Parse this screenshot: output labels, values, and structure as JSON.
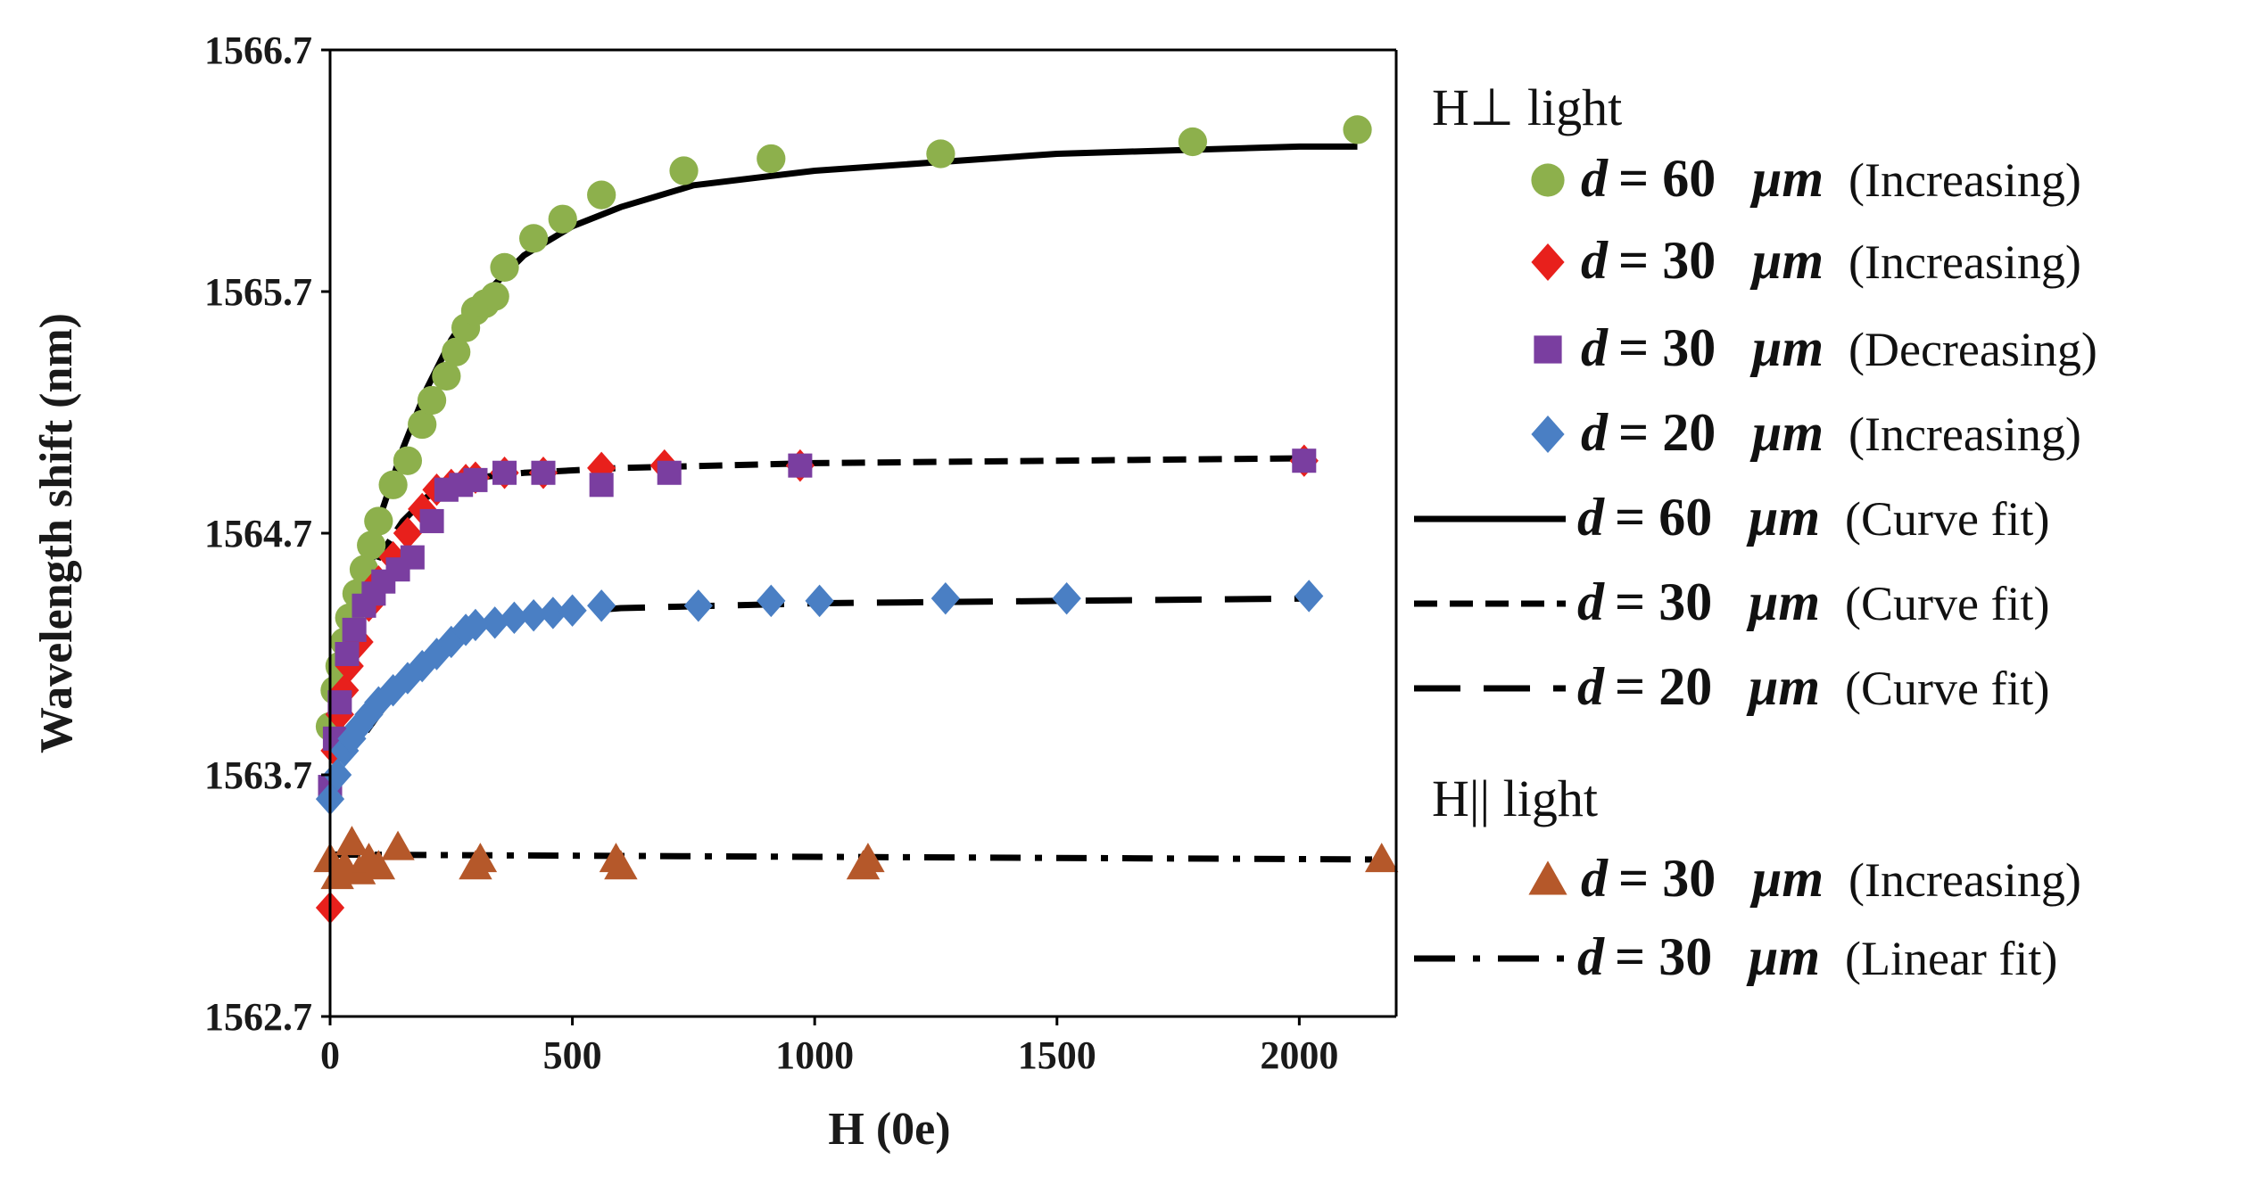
{
  "colors": {
    "green": "#8db04c",
    "red": "#e8201c",
    "purple": "#7a3ea0",
    "blue": "#4a7fc4",
    "brown": "#b5582a",
    "black": "#000000"
  },
  "chart_data": {
    "type": "scatter",
    "title": "",
    "xlabel": "H (0e)",
    "ylabel": "Wavelength shift (nm)",
    "xlim": [
      0,
      2200
    ],
    "ylim": [
      1562.7,
      1566.7
    ],
    "xticks": [
      0,
      500,
      1000,
      1500,
      2000
    ],
    "yticks": [
      1562.7,
      1563.7,
      1564.7,
      1565.7,
      1566.7
    ],
    "ytick_labels": [
      "1562.7",
      "1563.7",
      "1564.7",
      "1565.7",
      "1566.7"
    ],
    "series": [
      {
        "name": "d = 60 µm (Increasing)",
        "kind": "points",
        "marker": "circle",
        "color_key": "green",
        "x": [
          0,
          10,
          20,
          30,
          40,
          55,
          70,
          85,
          100,
          130,
          160,
          190,
          210,
          240,
          260,
          280,
          300,
          320,
          340,
          360,
          420,
          480,
          560,
          730,
          910,
          1260,
          1780,
          2120
        ],
        "y": [
          1563.9,
          1564.05,
          1564.15,
          1564.25,
          1564.35,
          1564.45,
          1564.55,
          1564.65,
          1564.75,
          1564.9,
          1565.0,
          1565.15,
          1565.25,
          1565.35,
          1565.45,
          1565.55,
          1565.62,
          1565.65,
          1565.68,
          1565.8,
          1565.92,
          1566.0,
          1566.1,
          1566.2,
          1566.25,
          1566.27,
          1566.32,
          1566.37
        ]
      },
      {
        "name": "d = 30 µm (Increasing)",
        "kind": "points",
        "marker": "diamond",
        "color_key": "red",
        "x": [
          0,
          10,
          20,
          30,
          40,
          60,
          80,
          100,
          130,
          160,
          190,
          220,
          250,
          280,
          300,
          360,
          440,
          560,
          690,
          970,
          2010
        ],
        "y": [
          1563.15,
          1563.8,
          1563.95,
          1564.05,
          1564.15,
          1564.25,
          1564.4,
          1564.5,
          1564.6,
          1564.7,
          1564.8,
          1564.88,
          1564.9,
          1564.92,
          1564.93,
          1564.95,
          1564.95,
          1564.97,
          1564.98,
          1564.98,
          1565.0
        ]
      },
      {
        "name": "d = 30 µm (Decreasing)",
        "kind": "points",
        "marker": "square",
        "color_key": "purple",
        "x": [
          2010,
          970,
          700,
          560,
          440,
          360,
          300,
          270,
          240,
          210,
          170,
          140,
          110,
          90,
          70,
          50,
          35,
          20,
          10,
          0
        ],
        "y": [
          1565.0,
          1564.98,
          1564.95,
          1564.9,
          1564.95,
          1564.95,
          1564.92,
          1564.9,
          1564.88,
          1564.75,
          1564.6,
          1564.55,
          1564.5,
          1564.45,
          1564.4,
          1564.3,
          1564.2,
          1564.0,
          1563.85,
          1563.65
        ]
      },
      {
        "name": "d = 20 µm (Increasing)",
        "kind": "points",
        "marker": "diamond",
        "color_key": "blue",
        "x": [
          0,
          15,
          30,
          45,
          60,
          80,
          100,
          130,
          160,
          190,
          220,
          250,
          280,
          300,
          340,
          380,
          420,
          460,
          500,
          560,
          760,
          910,
          1010,
          1270,
          1520,
          2020
        ],
        "y": [
          1563.6,
          1563.7,
          1563.8,
          1563.85,
          1563.9,
          1563.95,
          1564.0,
          1564.05,
          1564.1,
          1564.15,
          1564.2,
          1564.25,
          1564.3,
          1564.32,
          1564.33,
          1564.35,
          1564.36,
          1564.37,
          1564.38,
          1564.4,
          1564.4,
          1564.42,
          1564.42,
          1564.43,
          1564.43,
          1564.44
        ]
      },
      {
        "name": "d = 30 µm (Increasing) H||light",
        "kind": "points",
        "marker": "triangle",
        "color_key": "brown",
        "x": [
          0,
          15,
          30,
          45,
          60,
          80,
          100,
          140,
          300,
          310,
          590,
          600,
          1100,
          1110,
          2170
        ],
        "y": [
          1563.35,
          1563.28,
          1563.32,
          1563.42,
          1563.3,
          1563.35,
          1563.32,
          1563.4,
          1563.32,
          1563.35,
          1563.35,
          1563.32,
          1563.32,
          1563.35,
          1563.35
        ]
      },
      {
        "name": "d = 60 µm (Curve fit)",
        "kind": "line",
        "dash": "solid",
        "color_key": "black",
        "x": [
          75,
          100,
          150,
          200,
          250,
          300,
          350,
          400,
          500,
          600,
          750,
          1000,
          1500,
          2000,
          2120
        ],
        "y": [
          1564.45,
          1564.75,
          1565.05,
          1565.3,
          1565.5,
          1565.65,
          1565.75,
          1565.85,
          1565.97,
          1566.05,
          1566.14,
          1566.2,
          1566.27,
          1566.3,
          1566.3
        ]
      },
      {
        "name": "d = 30 µm (Curve fit)",
        "kind": "line",
        "dash": "short",
        "color_key": "black",
        "x": [
          75,
          100,
          150,
          200,
          250,
          300,
          400,
          600,
          1000,
          1500,
          2000
        ],
        "y": [
          1564.45,
          1564.6,
          1564.75,
          1564.85,
          1564.9,
          1564.93,
          1564.95,
          1564.97,
          1564.99,
          1565.0,
          1565.01
        ]
      },
      {
        "name": "d = 20 µm (Curve fit)",
        "kind": "line",
        "dash": "long",
        "color_key": "black",
        "x": [
          75,
          100,
          150,
          200,
          250,
          300,
          400,
          600,
          1000,
          1500,
          2020
        ],
        "y": [
          1563.88,
          1563.95,
          1564.08,
          1564.18,
          1564.26,
          1564.32,
          1564.36,
          1564.39,
          1564.41,
          1564.42,
          1564.43
        ]
      },
      {
        "name": "d = 30 µm (Linear fit)",
        "kind": "line",
        "dash": "dashdot",
        "color_key": "black",
        "x": [
          0,
          2170
        ],
        "y": [
          1563.37,
          1563.35
        ]
      }
    ],
    "legend": {
      "position": "right",
      "group1_title": "H⊥ light",
      "group2_title": "H|| light",
      "entries": [
        {
          "d": "d",
          "eq": "= 60",
          "unit": "μm",
          "note": "(Increasing)",
          "marker": "circle",
          "color_key": "green"
        },
        {
          "d": "d",
          "eq": "= 30",
          "unit": "μm",
          "note": "(Increasing)",
          "marker": "diamond",
          "color_key": "red"
        },
        {
          "d": "d",
          "eq": "= 30",
          "unit": "μm",
          "note": "(Decreasing)",
          "marker": "square",
          "color_key": "purple"
        },
        {
          "d": "d",
          "eq": "= 20",
          "unit": "μm",
          "note": "(Increasing)",
          "marker": "diamond",
          "color_key": "blue"
        },
        {
          "d": "d",
          "eq": "= 60",
          "unit": "μm",
          "note": "(Curve fit)",
          "line": "solid"
        },
        {
          "d": "d",
          "eq": "= 30",
          "unit": "μm",
          "note": "(Curve fit)",
          "line": "short"
        },
        {
          "d": "d",
          "eq": "= 20",
          "unit": "μm",
          "note": "(Curve fit)",
          "line": "long"
        },
        {
          "d": "d",
          "eq": "= 30",
          "unit": "μm",
          "note": "(Increasing)",
          "marker": "triangle",
          "color_key": "brown"
        },
        {
          "d": "d",
          "eq": "= 30",
          "unit": "μm",
          "note": "(Linear fit)",
          "line": "dashdot"
        }
      ]
    }
  }
}
